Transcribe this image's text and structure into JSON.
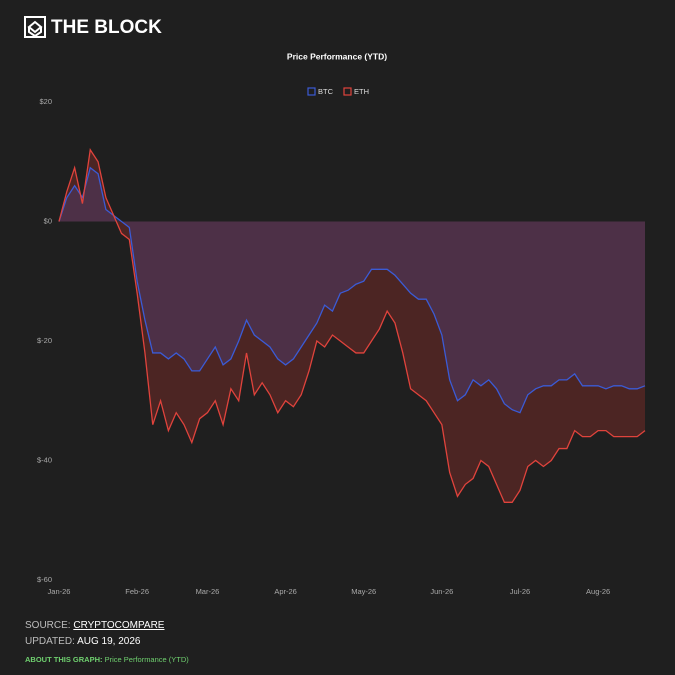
{
  "header": {
    "logo": "THE BLOCK"
  },
  "chart_data": {
    "type": "line",
    "title": "Price Performance (YTD)",
    "categories": [
      "Jan-26",
      null,
      null,
      null,
      null,
      null,
      null,
      null,
      null,
      null,
      "Feb-26",
      null,
      null,
      null,
      null,
      null,
      null,
      null,
      null,
      "Mar-26",
      null,
      null,
      null,
      null,
      null,
      null,
      null,
      null,
      null,
      "Apr-26",
      null,
      null,
      null,
      null,
      null,
      null,
      null,
      null,
      null,
      "May-26",
      null,
      null,
      null,
      null,
      null,
      null,
      null,
      null,
      null,
      "Jun-26",
      null,
      null,
      null,
      null,
      null,
      null,
      null,
      null,
      null,
      "Jul-26",
      null,
      null,
      null,
      null,
      null,
      null,
      null,
      null,
      null,
      "Aug-26",
      null,
      null,
      null,
      null,
      null,
      null
    ],
    "series": [
      {
        "name": "BTC",
        "color": "#3b5bd6",
        "fill": "rgba(80,90,200,0.22)",
        "values": [
          0,
          4,
          6,
          4,
          9,
          8,
          2,
          1,
          0,
          -1,
          -10,
          -16.5,
          -22,
          -22,
          -23,
          -22,
          -23,
          -25,
          -25,
          -23,
          -21,
          -24,
          -23,
          -20,
          -16.5,
          -19,
          -20,
          -21,
          -23,
          -24,
          -23,
          -21,
          -19,
          -17,
          -14,
          -15,
          -12,
          -11.5,
          -10.5,
          -10,
          -8,
          -8,
          -8,
          -9,
          -10.5,
          -12,
          -13,
          -13,
          -15.5,
          -19,
          -26.5,
          -30,
          -29,
          -26.5,
          -27.5,
          -26.5,
          -28,
          -30.5,
          -31.5,
          -32,
          -29,
          -28,
          -27.5,
          -27.5,
          -26.5,
          -26.5,
          -25.5,
          -27.5,
          -27.5,
          -27.5,
          -28,
          -27.5,
          -27.5,
          -28,
          -28,
          -27.5
        ]
      },
      {
        "name": "ETH",
        "color": "#e0433c",
        "fill": "rgba(170,50,45,0.32)",
        "values": [
          0,
          5,
          9,
          3,
          12,
          10,
          4,
          1,
          -2,
          -3,
          -12,
          -22,
          -34,
          -30,
          -35,
          -32,
          -34,
          -37,
          -33,
          -32,
          -30,
          -34,
          -28,
          -30,
          -22,
          -29,
          -27,
          -29,
          -32,
          -30,
          -31,
          -29,
          -25,
          -20,
          -21,
          -19,
          -20,
          -21,
          -22,
          -22,
          -20,
          -18,
          -15,
          -17,
          -22,
          -28,
          -29,
          -30,
          -32,
          -34,
          -42,
          -46,
          -44,
          -43,
          -40,
          -41,
          -44,
          -47,
          -47,
          -45,
          -41,
          -40,
          -41,
          -40,
          -38,
          -38,
          -35,
          -36,
          -36,
          -35,
          -35,
          -36,
          -36,
          -36,
          -36,
          -35
        ]
      }
    ],
    "ylim": [
      -60,
      20
    ],
    "yticks": [
      {
        "value": 20,
        "label": "$20"
      },
      {
        "value": 0,
        "label": "$0"
      },
      {
        "value": -20,
        "label": "$-20"
      },
      {
        "value": -40,
        "label": "$-40"
      },
      {
        "value": -60,
        "label": "$-60"
      }
    ],
    "grid": false,
    "legend": "top"
  },
  "footer": {
    "source_label": "SOURCE:",
    "source": "CRYPTOCOMPARE",
    "updated_label": "UPDATED:",
    "updated": "AUG 19, 2026",
    "about_label": "ABOUT THIS GRAPH:",
    "about": "Price Performance (YTD)"
  }
}
